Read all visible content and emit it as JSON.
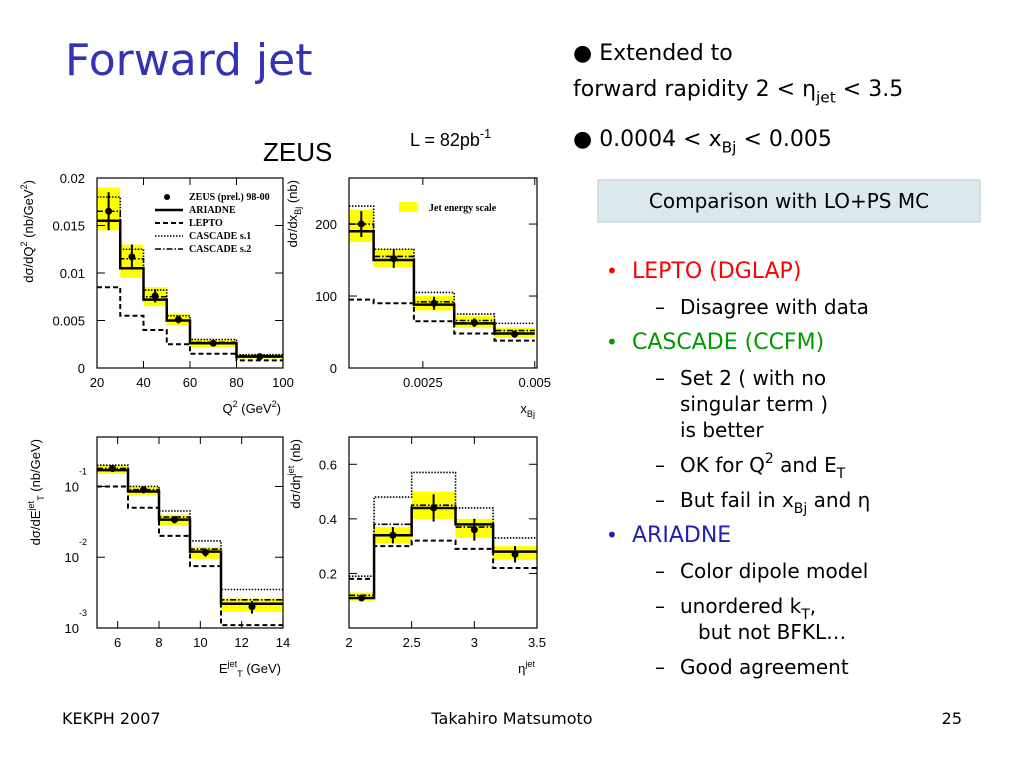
{
  "slide": {
    "title": "Forward jet",
    "intro": [
      [
        {
          "text": "● Extended to"
        }
      ],
      [
        {
          "text": "forward rapidity 2  < "
        },
        {
          "text": "η"
        },
        {
          "text": "jet",
          "shift": "sub"
        },
        {
          "text": " < 3.5"
        }
      ],
      [
        {
          "text": "● 0.0004 < x"
        },
        {
          "text": "Bj",
          "shift": "sub"
        },
        {
          "text": " < 0.005"
        }
      ]
    ],
    "box": "Comparison with LO+PS MC",
    "list": [
      {
        "marker": "•",
        "color": "#ff0000",
        "text": [
          {
            "text": "LEPTO (DGLAP)"
          }
        ],
        "sub": [
          {
            "marker": "–",
            "lines": [
              [
                {
                  "text": "Disagree with data"
                }
              ]
            ]
          }
        ]
      },
      {
        "marker": "•",
        "color": "#009900",
        "text": [
          {
            "text": "CASCADE (CCFM)"
          }
        ],
        "sub": [
          {
            "marker": "–",
            "lines": [
              [
                {
                  "text": "Set 2 ( with no"
                }
              ],
              [
                {
                  "text": "singular term )"
                }
              ],
              [
                {
                  "text": "is better"
                }
              ]
            ]
          },
          {
            "marker": "–",
            "lines": [
              [
                {
                  "text": "OK for Q"
                },
                {
                  "text": "2",
                  "shift": "sup"
                },
                {
                  "text": " and E"
                },
                {
                  "text": "T",
                  "shift": "sub"
                }
              ]
            ]
          },
          {
            "marker": "–",
            "lines": [
              [
                {
                  "text": "But fail in x"
                },
                {
                  "text": "Bj",
                  "shift": "sub"
                },
                {
                  "text": " and "
                },
                {
                  "text": "η"
                }
              ]
            ]
          }
        ]
      },
      {
        "marker": "•",
        "color": "#1f1fb4",
        "text": [
          {
            "text": "ARIADNE"
          }
        ],
        "sub": [
          {
            "marker": "–",
            "lines": [
              [
                {
                  "text": "Color dipole model"
                }
              ]
            ]
          },
          {
            "marker": "–",
            "lines": [
              [
                {
                  "text": "unordered k"
                },
                {
                  "text": "T",
                  "shift": "sub"
                },
                {
                  "text": ","
                }
              ],
              [
                {
                  "text": "but not BFKL…"
                }
              ]
            ]
          },
          {
            "marker": "–",
            "lines": [
              [
                {
                  "text": "Good agreement"
                }
              ]
            ]
          }
        ]
      }
    ],
    "experiment": "ZEUS",
    "lumi": [
      {
        "text": "L = 82pb"
      },
      {
        "text": "-1",
        "shift": "sup"
      }
    ],
    "footer": {
      "left": "KEKPH 2007",
      "center": "Takahiro Matsumoto",
      "right": "25"
    }
  },
  "chart_data": [
    {
      "type": "histogram",
      "x_label": [
        {
          "text": "Q"
        },
        {
          "text": "2",
          "shift": "sup"
        },
        {
          "text": " (GeV"
        },
        {
          "text": "2",
          "shift": "sup"
        },
        {
          "text": ")"
        }
      ],
      "y_label": [
        {
          "text": "dσ/dQ"
        },
        {
          "text": "2",
          "shift": "sup"
        },
        {
          "text": " (nb/GeV"
        },
        {
          "text": "2",
          "shift": "sup"
        },
        {
          "text": ")"
        }
      ],
      "xlim": [
        20,
        100
      ],
      "ylim": [
        0,
        0.02
      ],
      "xticks": [
        20,
        40,
        60,
        80,
        100
      ],
      "yticks": [
        0,
        0.005,
        0.01,
        0.015,
        0.02
      ],
      "bins": [
        20,
        30,
        40,
        50,
        60,
        80,
        100
      ],
      "band": {
        "color": "#ffff00",
        "low": [
          0.0145,
          0.0095,
          0.0065,
          0.0045,
          0.0022,
          0.001
        ],
        "high": [
          0.019,
          0.013,
          0.0085,
          0.0057,
          0.003,
          0.0014
        ]
      },
      "data": {
        "name": "ZEUS (prel.) 98-00",
        "color": "#000000",
        "values": [
          0.0165,
          0.0117,
          0.0076,
          0.0051,
          0.0026,
          0.0012
        ],
        "errors": [
          0.002,
          0.0013,
          0.0007,
          0.0004,
          0.0003,
          0.0002
        ]
      },
      "series": [
        {
          "name": "ARIADNE",
          "color": "#000000",
          "style": "solid",
          "values": [
            0.0155,
            0.0105,
            0.0072,
            0.005,
            0.0026,
            0.0012
          ]
        },
        {
          "name": "LEPTO",
          "color": "#000000",
          "style": "dashed",
          "values": [
            0.0085,
            0.0055,
            0.004,
            0.0025,
            0.0015,
            0.0008
          ]
        },
        {
          "name": "CASCADE s.1",
          "color": "#000000",
          "style": "dotted",
          "values": [
            0.018,
            0.0125,
            0.0082,
            0.0055,
            0.003,
            0.0014
          ]
        },
        {
          "name": "CASCADE s.2",
          "color": "#000000",
          "style": "dashdot",
          "values": [
            0.0165,
            0.0115,
            0.0075,
            0.005,
            0.0027,
            0.0013
          ]
        }
      ]
    },
    {
      "type": "histogram",
      "x_label": [
        {
          "text": "x"
        },
        {
          "text": "Bj",
          "shift": "sub"
        }
      ],
      "y_label": [
        {
          "text": "dσ/dx"
        },
        {
          "text": "Bj",
          "shift": "sub"
        },
        {
          "text": " (nb)"
        }
      ],
      "xlim": [
        0.00085,
        0.00505
      ],
      "ylim": [
        0,
        264
      ],
      "xticks": [
        0.0025,
        0.005
      ],
      "yticks": [
        0,
        100,
        200
      ],
      "bins": [
        0.00085,
        0.0014,
        0.0023,
        0.0032,
        0.0041,
        0.005
      ],
      "band": {
        "name": "Jet energy scale",
        "color": "#ffff00",
        "low": [
          175,
          140,
          80,
          56,
          42
        ],
        "high": [
          220,
          165,
          100,
          72,
          56
        ]
      },
      "data": {
        "color": "#000000",
        "values": [
          200,
          152,
          90,
          63,
          47
        ],
        "errors": [
          18,
          13,
          9,
          6,
          5
        ]
      },
      "series": [
        {
          "color": "#000000",
          "style": "solid",
          "values": [
            190,
            150,
            88,
            62,
            48
          ]
        },
        {
          "color": "#000000",
          "style": "dashed",
          "values": [
            95,
            90,
            65,
            48,
            38
          ]
        },
        {
          "color": "#000000",
          "style": "dotted",
          "values": [
            225,
            165,
            105,
            75,
            62
          ]
        },
        {
          "color": "#000000",
          "style": "dashdot",
          "values": [
            200,
            155,
            92,
            66,
            52
          ]
        }
      ]
    },
    {
      "type": "histogram",
      "log_y": true,
      "x_label": [
        {
          "text": "E"
        },
        {
          "text": "jet",
          "shift": "sup"
        },
        {
          "text": "T",
          "shift": "sub"
        },
        {
          "text": " (GeV)"
        }
      ],
      "y_label": [
        {
          "text": "dσ/dE"
        },
        {
          "text": "jet",
          "shift": "sup"
        },
        {
          "text": "T",
          "shift": "sub"
        },
        {
          "text": " (nb/GeV)"
        }
      ],
      "xlim": [
        5,
        14
      ],
      "ylim": [
        0.001,
        0.5
      ],
      "xticks": [
        6,
        8,
        10,
        12,
        14
      ],
      "yticks": [
        {
          "value": 0.1,
          "label": "10",
          "exp": "-1"
        },
        {
          "value": 0.01,
          "label": "10",
          "exp": "-2"
        },
        {
          "value": 0.001,
          "label": "10",
          "exp": "-3"
        }
      ],
      "bins": [
        5,
        6.5,
        8,
        9.5,
        11,
        14
      ],
      "band": {
        "color": "#ffff00",
        "low": [
          0.15,
          0.075,
          0.028,
          0.0095,
          0.0017
        ],
        "high": [
          0.2,
          0.1,
          0.04,
          0.014,
          0.0026
        ]
      },
      "data": {
        "color": "#000000",
        "values": [
          0.18,
          0.09,
          0.034,
          0.0117,
          0.002
        ],
        "errors": [
          0.02,
          0.01,
          0.004,
          0.0015,
          0.0004
        ]
      },
      "series": [
        {
          "color": "#000000",
          "style": "solid",
          "values": [
            0.17,
            0.085,
            0.034,
            0.012,
            0.0022
          ]
        },
        {
          "color": "#000000",
          "style": "dashed",
          "values": [
            0.1,
            0.05,
            0.02,
            0.0075,
            0.0011
          ]
        },
        {
          "color": "#000000",
          "style": "dotted",
          "values": [
            0.2,
            0.1,
            0.045,
            0.017,
            0.0035
          ]
        },
        {
          "color": "#000000",
          "style": "dashdot",
          "values": [
            0.18,
            0.09,
            0.037,
            0.013,
            0.0025
          ]
        }
      ]
    },
    {
      "type": "histogram",
      "x_label": [
        {
          "text": "η"
        },
        {
          "text": "jet",
          "shift": "sup"
        }
      ],
      "y_label": [
        {
          "text": "dσ/dη"
        },
        {
          "text": "jet",
          "shift": "sup"
        },
        {
          "text": " (nb)"
        }
      ],
      "xlim": [
        2,
        3.5
      ],
      "ylim": [
        0,
        0.7
      ],
      "xticks": [
        2,
        2.5,
        3,
        3.5
      ],
      "yticks": [
        0.2,
        0.4,
        0.6
      ],
      "bins": [
        2,
        2.2,
        2.5,
        2.85,
        3.15,
        3.5
      ],
      "band": {
        "color": "#ffff00",
        "low": [
          0.1,
          0.31,
          0.4,
          0.33,
          0.25
        ],
        "high": [
          0.13,
          0.37,
          0.5,
          0.4,
          0.3
        ]
      },
      "data": {
        "color": "#000000",
        "values": [
          0.11,
          0.34,
          0.44,
          0.36,
          0.27
        ],
        "errors": [
          0.01,
          0.03,
          0.05,
          0.04,
          0.03
        ]
      },
      "series": [
        {
          "color": "#000000",
          "style": "solid",
          "values": [
            0.11,
            0.34,
            0.44,
            0.38,
            0.28
          ]
        },
        {
          "color": "#000000",
          "style": "dashed",
          "values": [
            0.18,
            0.3,
            0.32,
            0.29,
            0.22
          ]
        },
        {
          "color": "#000000",
          "style": "dotted",
          "values": [
            0.19,
            0.48,
            0.57,
            0.44,
            0.33
          ]
        },
        {
          "color": "#000000",
          "style": "dashdot",
          "values": [
            0.12,
            0.38,
            0.45,
            0.37,
            0.28
          ]
        }
      ]
    }
  ]
}
